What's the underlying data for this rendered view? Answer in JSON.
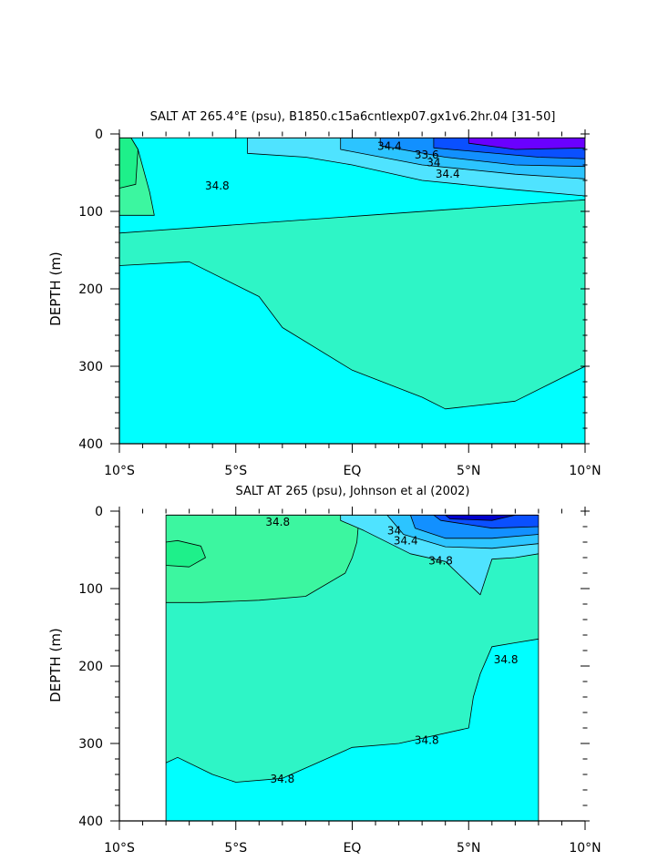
{
  "chart_data": [
    {
      "type": "heatmap",
      "title": "SALT AT 265.4°E (psu), B1850.c15a6cntlexp07.gx1v6.2hr.04 [31-50]",
      "xlabel": "",
      "ylabel": "DEPTH (m)",
      "xlim": [
        -10,
        10
      ],
      "ylim": [
        400,
        0
      ],
      "x_ticks": [
        -10,
        -5,
        0,
        5,
        10
      ],
      "x_tick_labels": [
        "10°S",
        "5°S",
        "EQ",
        "5°N",
        "10°N"
      ],
      "y_ticks": [
        0,
        100,
        200,
        300,
        400
      ],
      "y_tick_labels": [
        "0",
        "100",
        "200",
        "300",
        "400"
      ],
      "data_extent": {
        "x": [
          -10,
          10
        ],
        "y": [
          5,
          400
        ]
      },
      "background_color": "#00ffff",
      "contour_labels": [
        {
          "text": "34.4",
          "x": 1.6,
          "y": 16
        },
        {
          "text": "33.6",
          "x": 3.2,
          "y": 27
        },
        {
          "text": "34",
          "x": 3.5,
          "y": 37
        },
        {
          "text": "34.4",
          "x": 4.1,
          "y": 52
        },
        {
          "text": "34.8",
          "x": -5.8,
          "y": 67
        }
      ],
      "regions": [
        {
          "color": "#2ef5c6",
          "x": [
            -10,
            10,
            10,
            -10
          ],
          "y": [
            128,
            85,
            400,
            400
          ]
        },
        {
          "color": "#00ffff",
          "x": [
            -10,
            -7,
            -4,
            -3,
            0,
            3,
            4,
            7,
            10,
            10,
            -10
          ],
          "y": [
            170,
            165,
            210,
            250,
            305,
            340,
            355,
            345,
            300,
            400,
            400
          ]
        },
        {
          "color": "#3cf6a0",
          "x": [
            -10,
            -9.5,
            -9.2,
            -8.7,
            -8.5,
            -10
          ],
          "y": [
            5,
            5,
            20,
            75,
            105,
            105
          ]
        },
        {
          "color": "#1ef08a",
          "x": [
            -10,
            -9.5,
            -9.2,
            -9.3,
            -10
          ],
          "y": [
            5,
            5,
            20,
            65,
            70
          ]
        },
        {
          "color": "#4fe3ff",
          "x": [
            -4.5,
            10,
            10,
            7,
            3,
            0,
            -2,
            -4.5
          ],
          "y": [
            5,
            5,
            80,
            72,
            60,
            40,
            30,
            25
          ]
        },
        {
          "color": "#2cc4ff",
          "x": [
            -0.5,
            10,
            10,
            7,
            3,
            -0.5
          ],
          "y": [
            5,
            5,
            58,
            52,
            40,
            20
          ]
        },
        {
          "color": "#1290ff",
          "x": [
            1.2,
            10,
            10,
            7,
            4,
            1.2
          ],
          "y": [
            5,
            5,
            42,
            40,
            30,
            15
          ]
        },
        {
          "color": "#0a50ff",
          "x": [
            3.5,
            10,
            10,
            8,
            3.5
          ],
          "y": [
            5,
            5,
            32,
            30,
            18
          ]
        },
        {
          "color": "#6a00ff",
          "x": [
            5,
            10,
            10,
            7,
            5
          ],
          "y": [
            5,
            5,
            18,
            20,
            12
          ]
        }
      ]
    },
    {
      "type": "heatmap",
      "title": "SALT AT 265 (psu), Johnson et al (2002)",
      "xlabel": "",
      "ylabel": "DEPTH (m)",
      "xlim": [
        -10,
        10
      ],
      "ylim": [
        400,
        0
      ],
      "x_ticks": [
        -10,
        -5,
        0,
        5,
        10
      ],
      "x_tick_labels": [
        "10°S",
        "5°S",
        "EQ",
        "5°N",
        "10°N"
      ],
      "y_ticks": [
        0,
        100,
        200,
        300,
        400
      ],
      "y_tick_labels": [
        "0",
        "100",
        "200",
        "300",
        "400"
      ],
      "data_extent": {
        "x": [
          -8,
          8
        ],
        "y": [
          5,
          400
        ]
      },
      "background_color": "#2ef5c6",
      "contour_labels": [
        {
          "text": "34.8",
          "x": -3.2,
          "y": 14
        },
        {
          "text": "34",
          "x": 1.8,
          "y": 25
        },
        {
          "text": "34.4",
          "x": 2.3,
          "y": 38
        },
        {
          "text": "34.8",
          "x": 3.8,
          "y": 64
        },
        {
          "text": "34.8",
          "x": 6.6,
          "y": 192
        },
        {
          "text": "34.8",
          "x": 3.2,
          "y": 296
        },
        {
          "text": "34.8",
          "x": -3,
          "y": 346
        }
      ],
      "regions": [
        {
          "color": "#00ffff",
          "x": [
            -8,
            -7.5,
            -6,
            -5,
            -3,
            0,
            2,
            5,
            5.2,
            5.5,
            6,
            7,
            8,
            8,
            -8
          ],
          "y": [
            325,
            318,
            340,
            350,
            345,
            305,
            300,
            280,
            240,
            210,
            175,
            170,
            165,
            400,
            400
          ]
        },
        {
          "color": "#3cf6a0",
          "x": [
            -8,
            0.3,
            0.2,
            0,
            -0.3,
            -2,
            -4,
            -6.5,
            -8
          ],
          "y": [
            5,
            5,
            40,
            60,
            80,
            110,
            115,
            118,
            118
          ]
        },
        {
          "color": "#1ef08a",
          "x": [
            -8,
            -7.5,
            -6.5,
            -6.3,
            -7,
            -8
          ],
          "y": [
            40,
            38,
            45,
            60,
            72,
            70
          ]
        },
        {
          "color": "#4fe3ff",
          "x": [
            -0.5,
            8,
            8,
            7,
            6,
            5.5,
            4,
            2.5,
            0.5,
            -0.5
          ],
          "y": [
            5,
            5,
            55,
            60,
            62,
            108,
            65,
            55,
            25,
            12
          ]
        },
        {
          "color": "#2cc4ff",
          "x": [
            1.5,
            8,
            8,
            6,
            4,
            2.2
          ],
          "y": [
            5,
            5,
            42,
            48,
            46,
            30
          ]
        },
        {
          "color": "#1290ff",
          "x": [
            2.5,
            8,
            8,
            6,
            4,
            2.7
          ],
          "y": [
            5,
            5,
            30,
            35,
            35,
            22
          ]
        },
        {
          "color": "#0a50ff",
          "x": [
            3.5,
            8,
            8,
            6,
            3.8
          ],
          "y": [
            5,
            5,
            20,
            22,
            12
          ]
        },
        {
          "color": "#0000cc",
          "x": [
            4,
            7,
            6,
            4.2
          ],
          "y": [
            5,
            5,
            12,
            10
          ]
        }
      ]
    }
  ]
}
